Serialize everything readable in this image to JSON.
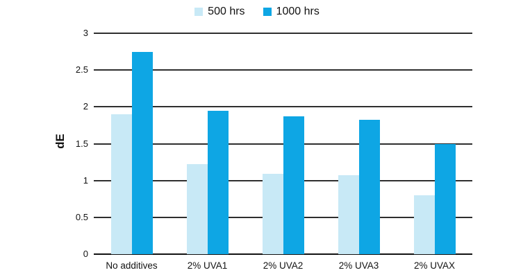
{
  "chart_data": {
    "type": "bar",
    "title": "",
    "categories": [
      "No additives",
      "2% UVA1",
      "2% UVA2",
      "2% UVA3",
      "2% UVAX"
    ],
    "series": [
      {
        "name": "500 hrs",
        "color": "#c8e9f6",
        "values": [
          1.9,
          1.22,
          1.09,
          1.07,
          0.8
        ]
      },
      {
        "name": "1000 hrs",
        "color": "#0ea6e4",
        "values": [
          2.75,
          1.95,
          1.87,
          1.82,
          1.5
        ]
      }
    ],
    "xlabel": "",
    "ylabel": "dE",
    "ylim": [
      0,
      3
    ],
    "yticks": [
      "3",
      "2.5",
      "2",
      "1.5",
      "1",
      "0.5",
      "0"
    ],
    "grid": true,
    "legend_position": "top-center"
  },
  "colors": {
    "background": "#ffffff",
    "gridline": "#2e2e2e",
    "axis": "#111111",
    "text": "#121212"
  }
}
